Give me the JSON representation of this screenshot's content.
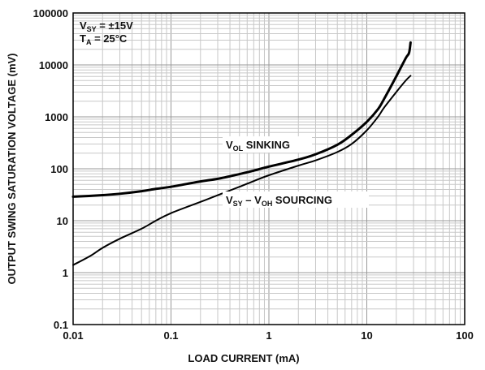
{
  "chart_data": {
    "type": "line",
    "xscale": "log",
    "yscale": "log",
    "xlim": [
      0.01,
      100
    ],
    "ylim": [
      0.1,
      100000
    ],
    "grid": true,
    "xlabel": "LOAD CURRENT (mA)",
    "ylabel": "OUTPUT SWING SATURATION VOLTAGE (mV)",
    "x_ticks": [
      {
        "value": 0.01,
        "label": "0.01"
      },
      {
        "value": 0.1,
        "label": "0.1"
      },
      {
        "value": 1,
        "label": "1"
      },
      {
        "value": 10,
        "label": "10"
      },
      {
        "value": 100,
        "label": "100"
      }
    ],
    "y_ticks": [
      {
        "value": 0.1,
        "label": "0.1"
      },
      {
        "value": 1,
        "label": "1"
      },
      {
        "value": 10,
        "label": "10"
      },
      {
        "value": 100,
        "label": "100"
      },
      {
        "value": 1000,
        "label": "1000"
      },
      {
        "value": 10000,
        "label": "10000"
      },
      {
        "value": 100000,
        "label": "100000"
      }
    ],
    "conditions": {
      "vsy": {
        "main": "V",
        "sub": "SY",
        "rest": " = ±15V"
      },
      "ta": {
        "main": "T",
        "sub": "A",
        "rest": " = 25°C"
      }
    },
    "series": [
      {
        "id": "sinking",
        "label": {
          "p1": "V",
          "s1": "OL",
          "p2": " SINKING"
        },
        "stroke_width": 3,
        "points": [
          [
            0.01,
            29
          ],
          [
            0.02,
            31
          ],
          [
            0.03,
            33
          ],
          [
            0.05,
            37
          ],
          [
            0.07,
            41
          ],
          [
            0.1,
            45
          ],
          [
            0.2,
            57
          ],
          [
            0.3,
            64
          ],
          [
            0.5,
            79
          ],
          [
            0.7,
            92
          ],
          [
            1,
            110
          ],
          [
            2,
            150
          ],
          [
            3,
            190
          ],
          [
            5,
            290
          ],
          [
            7,
            450
          ],
          [
            10,
            800
          ],
          [
            13,
            1400
          ],
          [
            15,
            2200
          ],
          [
            20,
            6000
          ],
          [
            25,
            13500
          ],
          [
            27,
            17000
          ],
          [
            28,
            27000
          ]
        ]
      },
      {
        "id": "sourcing",
        "label": {
          "p1": "V",
          "s1": "SY",
          "p2": " – V",
          "s2": "OH",
          "p3": " SOURCING"
        },
        "stroke_width": 2,
        "points": [
          [
            0.01,
            1.4
          ],
          [
            0.015,
            2.1
          ],
          [
            0.02,
            3
          ],
          [
            0.03,
            4.5
          ],
          [
            0.05,
            7
          ],
          [
            0.07,
            10
          ],
          [
            0.1,
            14
          ],
          [
            0.2,
            23
          ],
          [
            0.3,
            31
          ],
          [
            0.5,
            45
          ],
          [
            0.7,
            58
          ],
          [
            1,
            75
          ],
          [
            2,
            115
          ],
          [
            3,
            145
          ],
          [
            5,
            210
          ],
          [
            7,
            300
          ],
          [
            10,
            550
          ],
          [
            13,
            1000
          ],
          [
            15,
            1500
          ],
          [
            20,
            3000
          ],
          [
            25,
            5000
          ],
          [
            28,
            6200
          ]
        ]
      }
    ]
  }
}
